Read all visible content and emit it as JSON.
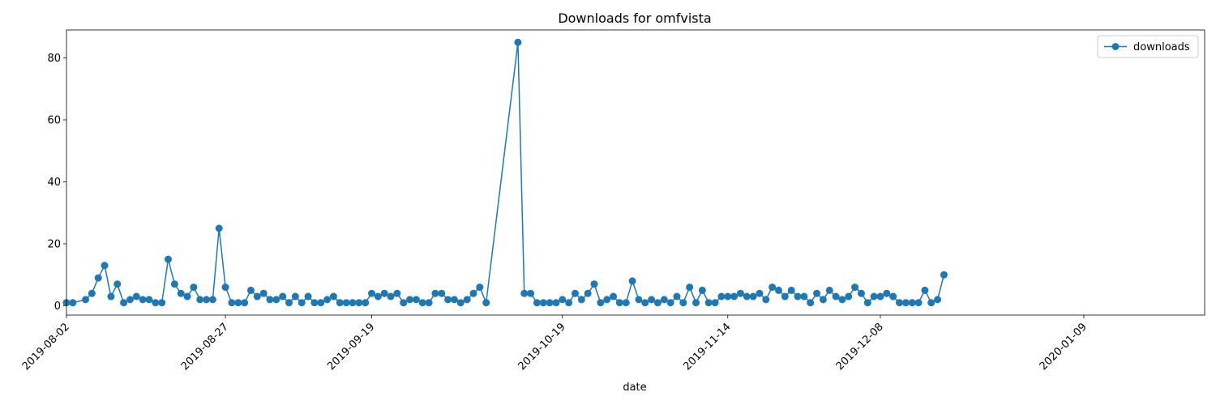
{
  "chart_data": {
    "type": "line",
    "title": "Downloads for omfvista",
    "xlabel": "date",
    "ylabel": "",
    "ylim": [
      -3,
      89
    ],
    "xlim": [
      "2019-08-02",
      "2020-01-28"
    ],
    "yticks": [
      0,
      20,
      40,
      60,
      80
    ],
    "xticks": [
      "2019-08-02",
      "2019-08-27",
      "2019-09-19",
      "2019-10-19",
      "2019-11-14",
      "2019-12-08",
      "2020-01-09"
    ],
    "grid": false,
    "legend_position": "top-right",
    "series": [
      {
        "name": "downloads",
        "color": "#1f77b4",
        "marker": "circle",
        "points": [
          [
            "2019-08-02",
            1
          ],
          [
            "2019-08-03",
            1
          ],
          [
            "2019-08-05",
            2
          ],
          [
            "2019-08-06",
            4
          ],
          [
            "2019-08-07",
            9
          ],
          [
            "2019-08-08",
            13
          ],
          [
            "2019-08-09",
            3
          ],
          [
            "2019-08-10",
            7
          ],
          [
            "2019-08-11",
            1
          ],
          [
            "2019-08-12",
            2
          ],
          [
            "2019-08-13",
            3
          ],
          [
            "2019-08-14",
            2
          ],
          [
            "2019-08-15",
            2
          ],
          [
            "2019-08-16",
            1
          ],
          [
            "2019-08-17",
            1
          ],
          [
            "2019-08-18",
            15
          ],
          [
            "2019-08-19",
            7
          ],
          [
            "2019-08-20",
            4
          ],
          [
            "2019-08-21",
            3
          ],
          [
            "2019-08-22",
            6
          ],
          [
            "2019-08-23",
            2
          ],
          [
            "2019-08-24",
            2
          ],
          [
            "2019-08-25",
            2
          ],
          [
            "2019-08-26",
            25
          ],
          [
            "2019-08-27",
            6
          ],
          [
            "2019-08-28",
            1
          ],
          [
            "2019-08-29",
            1
          ],
          [
            "2019-08-30",
            1
          ],
          [
            "2019-08-31",
            5
          ],
          [
            "2019-09-01",
            3
          ],
          [
            "2019-09-02",
            4
          ],
          [
            "2019-09-03",
            2
          ],
          [
            "2019-09-04",
            2
          ],
          [
            "2019-09-05",
            3
          ],
          [
            "2019-09-06",
            1
          ],
          [
            "2019-09-07",
            3
          ],
          [
            "2019-09-08",
            1
          ],
          [
            "2019-09-09",
            3
          ],
          [
            "2019-09-10",
            1
          ],
          [
            "2019-09-11",
            1
          ],
          [
            "2019-09-12",
            2
          ],
          [
            "2019-09-13",
            3
          ],
          [
            "2019-09-14",
            1
          ],
          [
            "2019-09-15",
            1
          ],
          [
            "2019-09-16",
            1
          ],
          [
            "2019-09-17",
            1
          ],
          [
            "2019-09-18",
            1
          ],
          [
            "2019-09-19",
            4
          ],
          [
            "2019-09-20",
            3
          ],
          [
            "2019-09-21",
            4
          ],
          [
            "2019-09-22",
            3
          ],
          [
            "2019-09-23",
            4
          ],
          [
            "2019-09-24",
            1
          ],
          [
            "2019-09-25",
            2
          ],
          [
            "2019-09-26",
            2
          ],
          [
            "2019-09-27",
            1
          ],
          [
            "2019-09-28",
            1
          ],
          [
            "2019-09-29",
            4
          ],
          [
            "2019-09-30",
            4
          ],
          [
            "2019-10-01",
            2
          ],
          [
            "2019-10-02",
            2
          ],
          [
            "2019-10-03",
            1
          ],
          [
            "2019-10-04",
            2
          ],
          [
            "2019-10-05",
            4
          ],
          [
            "2019-10-06",
            6
          ],
          [
            "2019-10-07",
            1
          ],
          [
            "2019-10-12",
            85
          ],
          [
            "2019-10-13",
            4
          ],
          [
            "2019-10-14",
            4
          ],
          [
            "2019-10-15",
            1
          ],
          [
            "2019-10-16",
            1
          ],
          [
            "2019-10-17",
            1
          ],
          [
            "2019-10-18",
            1
          ],
          [
            "2019-10-19",
            2
          ],
          [
            "2019-10-20",
            1
          ],
          [
            "2019-10-21",
            4
          ],
          [
            "2019-10-22",
            2
          ],
          [
            "2019-10-23",
            4
          ],
          [
            "2019-10-24",
            7
          ],
          [
            "2019-10-25",
            1
          ],
          [
            "2019-10-26",
            2
          ],
          [
            "2019-10-27",
            3
          ],
          [
            "2019-10-28",
            1
          ],
          [
            "2019-10-29",
            1
          ],
          [
            "2019-10-30",
            8
          ],
          [
            "2019-10-31",
            2
          ],
          [
            "2019-11-01",
            1
          ],
          [
            "2019-11-02",
            2
          ],
          [
            "2019-11-03",
            1
          ],
          [
            "2019-11-04",
            2
          ],
          [
            "2019-11-05",
            1
          ],
          [
            "2019-11-06",
            3
          ],
          [
            "2019-11-07",
            1
          ],
          [
            "2019-11-08",
            6
          ],
          [
            "2019-11-09",
            1
          ],
          [
            "2019-11-10",
            5
          ],
          [
            "2019-11-11",
            1
          ],
          [
            "2019-11-12",
            1
          ],
          [
            "2019-11-13",
            3
          ],
          [
            "2019-11-14",
            3
          ],
          [
            "2019-11-15",
            3
          ],
          [
            "2019-11-16",
            4
          ],
          [
            "2019-11-17",
            3
          ],
          [
            "2019-11-18",
            3
          ],
          [
            "2019-11-19",
            4
          ],
          [
            "2019-11-20",
            2
          ],
          [
            "2019-11-21",
            6
          ],
          [
            "2019-11-22",
            5
          ],
          [
            "2019-11-23",
            3
          ],
          [
            "2019-11-24",
            5
          ],
          [
            "2019-11-25",
            3
          ],
          [
            "2019-11-26",
            3
          ],
          [
            "2019-11-27",
            1
          ],
          [
            "2019-11-28",
            4
          ],
          [
            "2019-11-29",
            2
          ],
          [
            "2019-11-30",
            5
          ],
          [
            "2019-12-01",
            3
          ],
          [
            "2019-12-02",
            2
          ],
          [
            "2019-12-03",
            3
          ],
          [
            "2019-12-04",
            6
          ],
          [
            "2019-12-05",
            4
          ],
          [
            "2019-12-06",
            1
          ],
          [
            "2019-12-07",
            3
          ],
          [
            "2019-12-08",
            3
          ],
          [
            "2019-12-09",
            4
          ],
          [
            "2019-12-10",
            3
          ],
          [
            "2019-12-11",
            1
          ],
          [
            "2019-12-12",
            1
          ],
          [
            "2019-12-13",
            1
          ],
          [
            "2019-12-14",
            1
          ],
          [
            "2019-12-15",
            5
          ],
          [
            "2019-12-16",
            1
          ],
          [
            "2019-12-17",
            2
          ],
          [
            "2019-12-18",
            10
          ]
        ]
      }
    ]
  }
}
